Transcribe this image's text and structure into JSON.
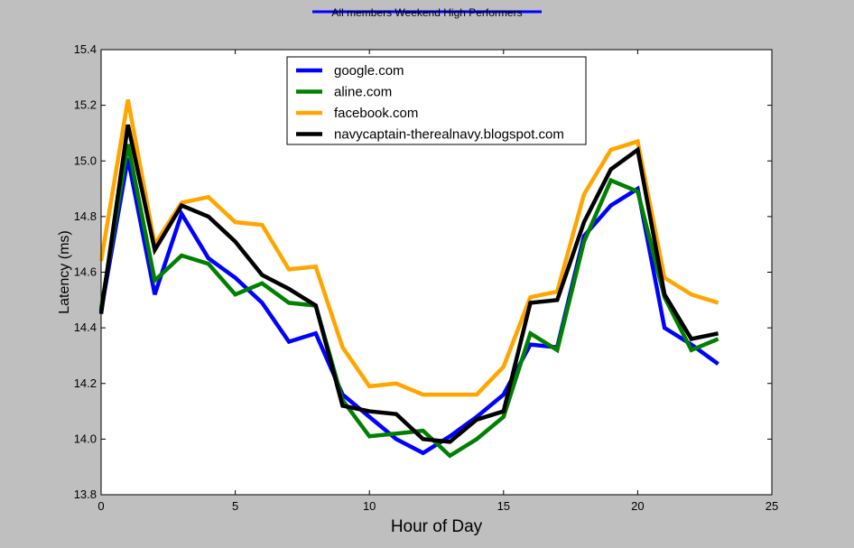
{
  "chart_data": {
    "type": "line",
    "title": "All members Weekend High Performers",
    "title_color": "#0000ff",
    "xlabel": "Hour of Day",
    "ylabel": "Latency (ms)",
    "xlim": [
      0,
      25
    ],
    "ylim": [
      13.8,
      15.4
    ],
    "x_ticks": [
      0,
      5,
      10,
      15,
      20,
      25
    ],
    "x_tick_labels": [
      "0",
      "5",
      "10",
      "15",
      "20",
      "25"
    ],
    "y_ticks": [
      13.8,
      14.0,
      14.2,
      14.4,
      14.6,
      14.8,
      15.0,
      15.2,
      15.4
    ],
    "y_tick_labels": [
      "13.8",
      "14.0",
      "14.2",
      "14.4",
      "14.6",
      "14.8",
      "15.0",
      "15.2",
      "15.4"
    ],
    "grid": false,
    "legend_position": "top-center",
    "x": [
      0,
      1,
      2,
      3,
      4,
      5,
      6,
      7,
      8,
      9,
      10,
      11,
      12,
      13,
      14,
      15,
      16,
      17,
      18,
      19,
      20,
      21,
      22,
      23
    ],
    "series": [
      {
        "name": "google.com",
        "color": "#0000ff",
        "values": [
          14.46,
          15.01,
          14.52,
          14.81,
          14.65,
          14.58,
          14.49,
          14.35,
          14.38,
          14.16,
          14.08,
          14.0,
          13.95,
          14.01,
          14.08,
          14.16,
          14.34,
          14.33,
          14.73,
          14.84,
          14.9,
          14.4,
          14.34,
          14.27
        ]
      },
      {
        "name": "aline.com",
        "color": "#008000",
        "values": [
          14.47,
          15.06,
          14.57,
          14.66,
          14.63,
          14.52,
          14.56,
          14.49,
          14.48,
          14.14,
          14.01,
          14.02,
          14.03,
          13.94,
          14.0,
          14.08,
          14.38,
          14.32,
          14.71,
          14.93,
          14.89,
          14.51,
          14.32,
          14.36
        ]
      },
      {
        "name": "facebook.com",
        "color": "#ffa500",
        "values": [
          14.64,
          15.22,
          14.7,
          14.85,
          14.87,
          14.78,
          14.77,
          14.61,
          14.62,
          14.33,
          14.19,
          14.2,
          14.16,
          14.16,
          14.16,
          14.26,
          14.51,
          14.53,
          14.88,
          15.04,
          15.07,
          14.58,
          14.52,
          14.49
        ]
      },
      {
        "name": "navycaptain-therealnavy.blogspot.com",
        "color": "#000000",
        "values": [
          14.45,
          15.13,
          14.68,
          14.84,
          14.8,
          14.71,
          14.59,
          14.54,
          14.48,
          14.12,
          14.1,
          14.09,
          14.0,
          13.99,
          14.07,
          14.1,
          14.49,
          14.5,
          14.78,
          14.97,
          15.04,
          14.52,
          14.36,
          14.38
        ]
      }
    ]
  }
}
